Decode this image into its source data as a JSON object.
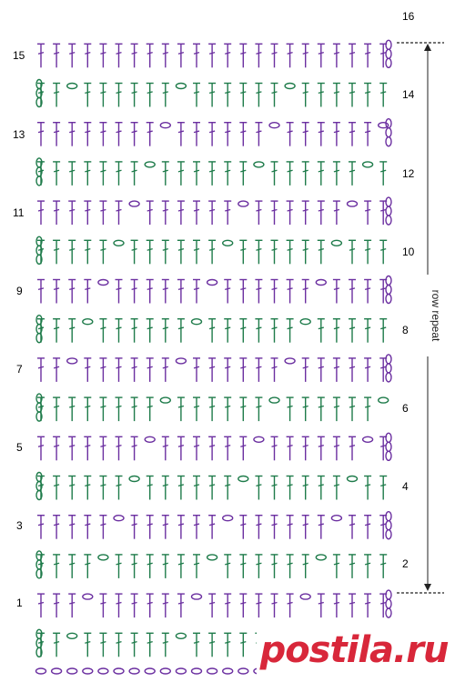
{
  "colors": {
    "odd_rows": "#1e7b4a",
    "even_rows": "#6b2fa0",
    "repeat_line": "#222222",
    "watermark": "#d8273a"
  },
  "row_numbers": {
    "left": [
      "1",
      "3",
      "5",
      "7",
      "9",
      "11",
      "13",
      "15"
    ],
    "right": [
      "2",
      "4",
      "6",
      "8",
      "10",
      "12",
      "14",
      "16"
    ]
  },
  "repeat_label": "row repeat",
  "watermark_text": "postila.ru",
  "symbols": {
    "stitch": "double-crochet-symbol",
    "chain": "chain-symbol",
    "turning_chain": "turning-chain-symbol"
  }
}
